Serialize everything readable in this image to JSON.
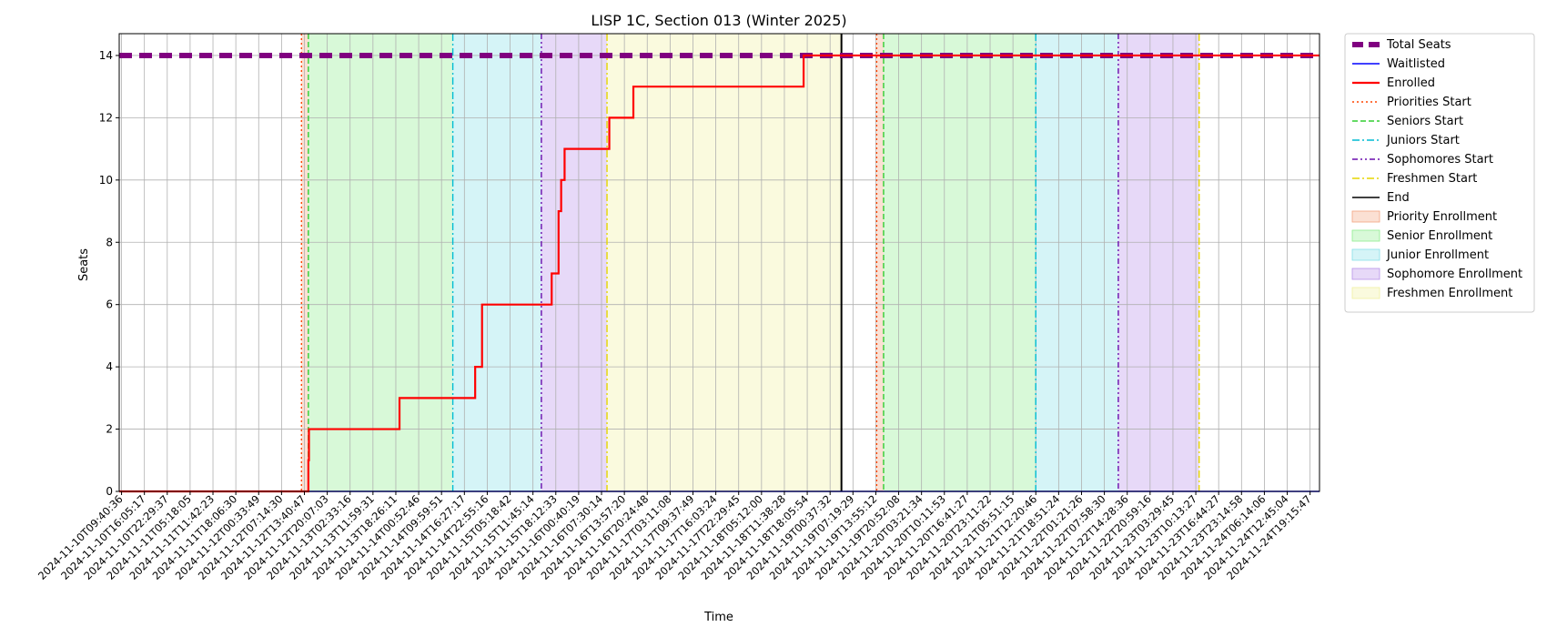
{
  "chart_data": {
    "type": "line",
    "title": "LISP 1C, Section 013 (Winter 2025)",
    "xlabel": "Time",
    "ylabel": "Seats",
    "ylim": [
      0,
      14.7
    ],
    "yticks": [
      0,
      2,
      4,
      6,
      8,
      10,
      12,
      14
    ],
    "x_range": [
      "2024-11-10T09:00:00",
      "2024-11-24T22:00:00"
    ],
    "grid": true,
    "legend_position": "outside-right",
    "xtick_labels": [
      "2024-11-10T09:40:36",
      "2024-11-10T16:05:17",
      "2024-11-10T22:29:37",
      "2024-11-11T05:18:05",
      "2024-11-11T11:42:23",
      "2024-11-11T18:06:30",
      "2024-11-12T00:33:49",
      "2024-11-12T07:14:30",
      "2024-11-12T13:40:47",
      "2024-11-12T20:07:03",
      "2024-11-13T02:33:16",
      "2024-11-13T11:59:31",
      "2024-11-13T18:26:11",
      "2024-11-14T00:52:46",
      "2024-11-14T09:59:51",
      "2024-11-14T16:27:17",
      "2024-11-14T22:55:16",
      "2024-11-15T05:18:42",
      "2024-11-15T11:45:14",
      "2024-11-15T18:12:33",
      "2024-11-16T00:40:19",
      "2024-11-16T07:30:14",
      "2024-11-16T13:57:20",
      "2024-11-16T20:24:48",
      "2024-11-17T03:11:08",
      "2024-11-17T09:37:49",
      "2024-11-17T16:03:24",
      "2024-11-17T22:29:45",
      "2024-11-18T05:12:00",
      "2024-11-18T11:38:28",
      "2024-11-18T18:05:54",
      "2024-11-19T00:37:32",
      "2024-11-19T07:19:29",
      "2024-11-19T13:55:12",
      "2024-11-19T20:52:08",
      "2024-11-20T03:21:34",
      "2024-11-20T10:11:53",
      "2024-11-20T16:41:27",
      "2024-11-20T23:11:22",
      "2024-11-21T05:51:15",
      "2024-11-21T12:20:46",
      "2024-11-21T18:51:24",
      "2024-11-22T01:21:26",
      "2024-11-22T07:58:30",
      "2024-11-22T14:28:36",
      "2024-11-22T20:59:16",
      "2024-11-23T03:29:45",
      "2024-11-23T10:13:27",
      "2024-11-23T16:44:27",
      "2024-11-23T23:14:58",
      "2024-11-24T06:14:06",
      "2024-11-24T12:45:04",
      "2024-11-24T19:15:47"
    ],
    "series": [
      {
        "name": "Total Seats",
        "color": "#800080",
        "style": "dashed-thick",
        "x": [
          "2024-11-10T09:00:00",
          "2024-11-24T22:00:00"
        ],
        "values": [
          14,
          14
        ]
      },
      {
        "name": "Waitlisted",
        "color": "#0000ff",
        "style": "solid",
        "x": [
          "2024-11-10T09:00:00",
          "2024-11-24T22:00:00"
        ],
        "values": [
          0,
          0
        ]
      },
      {
        "name": "Enrolled",
        "color": "#ff0000",
        "style": "solid-thick",
        "step": true,
        "x": [
          "2024-11-10T09:00:00",
          "2024-11-12T16:00:00",
          "2024-11-12T16:10:00",
          "2024-11-13T18:30:00",
          "2024-11-14T16:30:00",
          "2024-11-14T18:30:00",
          "2024-11-15T14:45:00",
          "2024-11-15T16:45:00",
          "2024-11-15T17:30:00",
          "2024-11-15T18:30:00",
          "2024-11-15T20:30:00",
          "2024-11-16T07:30:00",
          "2024-11-16T14:30:00",
          "2024-11-18T16:00:00",
          "2024-11-24T22:00:00"
        ],
        "values": [
          0,
          1,
          2,
          3,
          4,
          6,
          7,
          9,
          10,
          11,
          11,
          12,
          13,
          14,
          14
        ]
      }
    ],
    "markers": [
      {
        "name": "Priorities Start",
        "color": "#ff4500",
        "style": "dotted",
        "x": "2024-11-12T14:00:00"
      },
      {
        "name": "Seniors Start",
        "color": "#32cd32",
        "style": "dashed",
        "x": "2024-11-12T16:00:00"
      },
      {
        "name": "Juniors Start",
        "color": "#00bcd4",
        "style": "dashdot",
        "x": "2024-11-14T10:00:00"
      },
      {
        "name": "Sophomores Start",
        "color": "#6a0dad",
        "style": "dashdotdot",
        "x": "2024-11-15T11:45:00"
      },
      {
        "name": "Freshmen Start",
        "color": "#e6d600",
        "style": "dashdot",
        "x": "2024-11-16T06:50:00"
      },
      {
        "name": "End",
        "color": "#000000",
        "style": "solid",
        "x": "2024-11-19T03:00:00"
      },
      {
        "name": "",
        "color": "#ff4500",
        "style": "dotted",
        "x": "2024-11-19T13:15:00"
      },
      {
        "name": "",
        "color": "#32cd32",
        "style": "dashed",
        "x": "2024-11-19T15:15:00"
      },
      {
        "name": "",
        "color": "#00bcd4",
        "style": "dashdot",
        "x": "2024-11-21T11:30:00"
      },
      {
        "name": "",
        "color": "#6a0dad",
        "style": "dashdotdot",
        "x": "2024-11-22T11:30:00"
      },
      {
        "name": "",
        "color": "#e6d600",
        "style": "dashdot",
        "x": "2024-11-23T11:00:00"
      }
    ],
    "bands": [
      {
        "name": "Priority Enrollment",
        "color": "#f4a582",
        "start": "2024-11-12T14:00:00",
        "end": "2024-11-12T16:00:00"
      },
      {
        "name": "Senior Enrollment",
        "color": "#90ee90",
        "start": "2024-11-12T16:00:00",
        "end": "2024-11-14T10:00:00"
      },
      {
        "name": "Junior Enrollment",
        "color": "#87e0e8",
        "start": "2024-11-14T10:00:00",
        "end": "2024-11-15T11:45:00"
      },
      {
        "name": "Sophomore Enrollment",
        "color": "#b993ea",
        "start": "2024-11-15T11:45:00",
        "end": "2024-11-16T06:50:00"
      },
      {
        "name": "Freshmen Enrollment",
        "color": "#f0f0a0",
        "start": "2024-11-16T06:50:00",
        "end": "2024-11-19T03:00:00"
      },
      {
        "name": "",
        "color": "#f4a582",
        "start": "2024-11-19T13:15:00",
        "end": "2024-11-19T15:15:00"
      },
      {
        "name": "",
        "color": "#90ee90",
        "start": "2024-11-19T15:15:00",
        "end": "2024-11-21T11:30:00"
      },
      {
        "name": "",
        "color": "#87e0e8",
        "start": "2024-11-21T11:30:00",
        "end": "2024-11-22T11:30:00"
      },
      {
        "name": "",
        "color": "#b993ea",
        "start": "2024-11-22T11:30:00",
        "end": "2024-11-23T11:00:00"
      }
    ],
    "legend": [
      {
        "label": "Total Seats",
        "kind": "line",
        "color": "#800080",
        "style": "dashed-thick"
      },
      {
        "label": "Waitlisted",
        "kind": "line",
        "color": "#0000ff",
        "style": "solid"
      },
      {
        "label": "Enrolled",
        "kind": "line",
        "color": "#ff0000",
        "style": "solid-thick"
      },
      {
        "label": "Priorities Start",
        "kind": "line",
        "color": "#ff4500",
        "style": "dotted"
      },
      {
        "label": "Seniors Start",
        "kind": "line",
        "color": "#32cd32",
        "style": "dashed"
      },
      {
        "label": "Juniors Start",
        "kind": "line",
        "color": "#00bcd4",
        "style": "dashdot"
      },
      {
        "label": "Sophomores Start",
        "kind": "line",
        "color": "#6a0dad",
        "style": "dashdotdot"
      },
      {
        "label": "Freshmen Start",
        "kind": "line",
        "color": "#e6d600",
        "style": "dashdot"
      },
      {
        "label": "End",
        "kind": "line",
        "color": "#000000",
        "style": "solid"
      },
      {
        "label": "Priority Enrollment",
        "kind": "patch",
        "color": "#f4a582"
      },
      {
        "label": "Senior Enrollment",
        "kind": "patch",
        "color": "#90ee90"
      },
      {
        "label": "Junior Enrollment",
        "kind": "patch",
        "color": "#87e0e8"
      },
      {
        "label": "Sophomore Enrollment",
        "kind": "patch",
        "color": "#b993ea"
      },
      {
        "label": "Freshmen Enrollment",
        "kind": "patch",
        "color": "#f0f0a0"
      }
    ]
  }
}
